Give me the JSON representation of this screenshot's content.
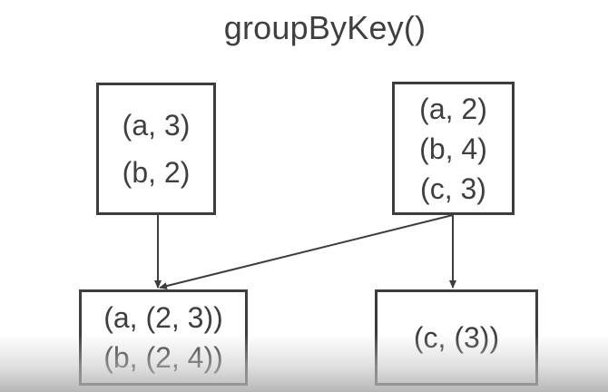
{
  "title": "groupByKey()",
  "input_partitions": [
    {
      "lines": [
        "(a, 3)",
        "(b, 2)"
      ]
    },
    {
      "lines": [
        "(a, 2)",
        "(b, 4)",
        "(c, 3)"
      ]
    }
  ],
  "output_partitions": [
    {
      "lines": [
        "(a, (2, 3))",
        "(b, (2, 4))"
      ]
    },
    {
      "lines": [
        "(c, (3))"
      ]
    }
  ]
}
